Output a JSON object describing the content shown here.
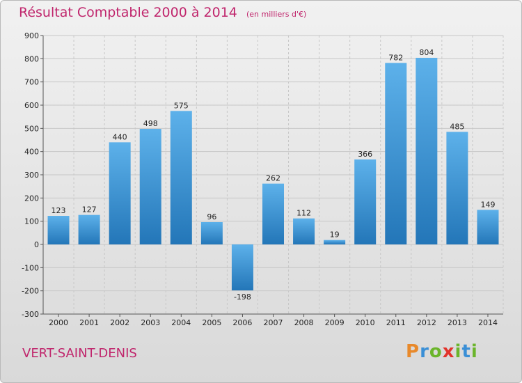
{
  "title": "Résultat Comptable 2000 à 2014",
  "subtitle": "(en milliers d'€)",
  "place": "VERT-SAINT-DENIS",
  "brand": {
    "letters": [
      "P",
      "r",
      "o",
      "x",
      "i",
      "t",
      "i"
    ],
    "colors": [
      "#e8892b",
      "#3a8fd6",
      "#6bb52b",
      "#e2332b",
      "#6bb52b",
      "#3a8fd6",
      "#6bb52b"
    ]
  },
  "colors": {
    "bar_light": "#5db1ea",
    "bar_dark": "#2376b8",
    "grid": "#c7c7c7",
    "text": "#c0256c"
  },
  "chart_data": {
    "type": "bar",
    "categories": [
      "2000",
      "2001",
      "2002",
      "2003",
      "2004",
      "2005",
      "2006",
      "2007",
      "2008",
      "2009",
      "2010",
      "2011",
      "2012",
      "2013",
      "2014"
    ],
    "values": [
      123,
      127,
      440,
      498,
      575,
      96,
      -198,
      262,
      112,
      19,
      366,
      782,
      804,
      485,
      149
    ],
    "ylim": [
      -300,
      900
    ],
    "yticks": [
      -300,
      -200,
      -100,
      0,
      100,
      200,
      300,
      400,
      500,
      600,
      700,
      800,
      900
    ],
    "grid": true,
    "xlabel": "",
    "ylabel": ""
  }
}
